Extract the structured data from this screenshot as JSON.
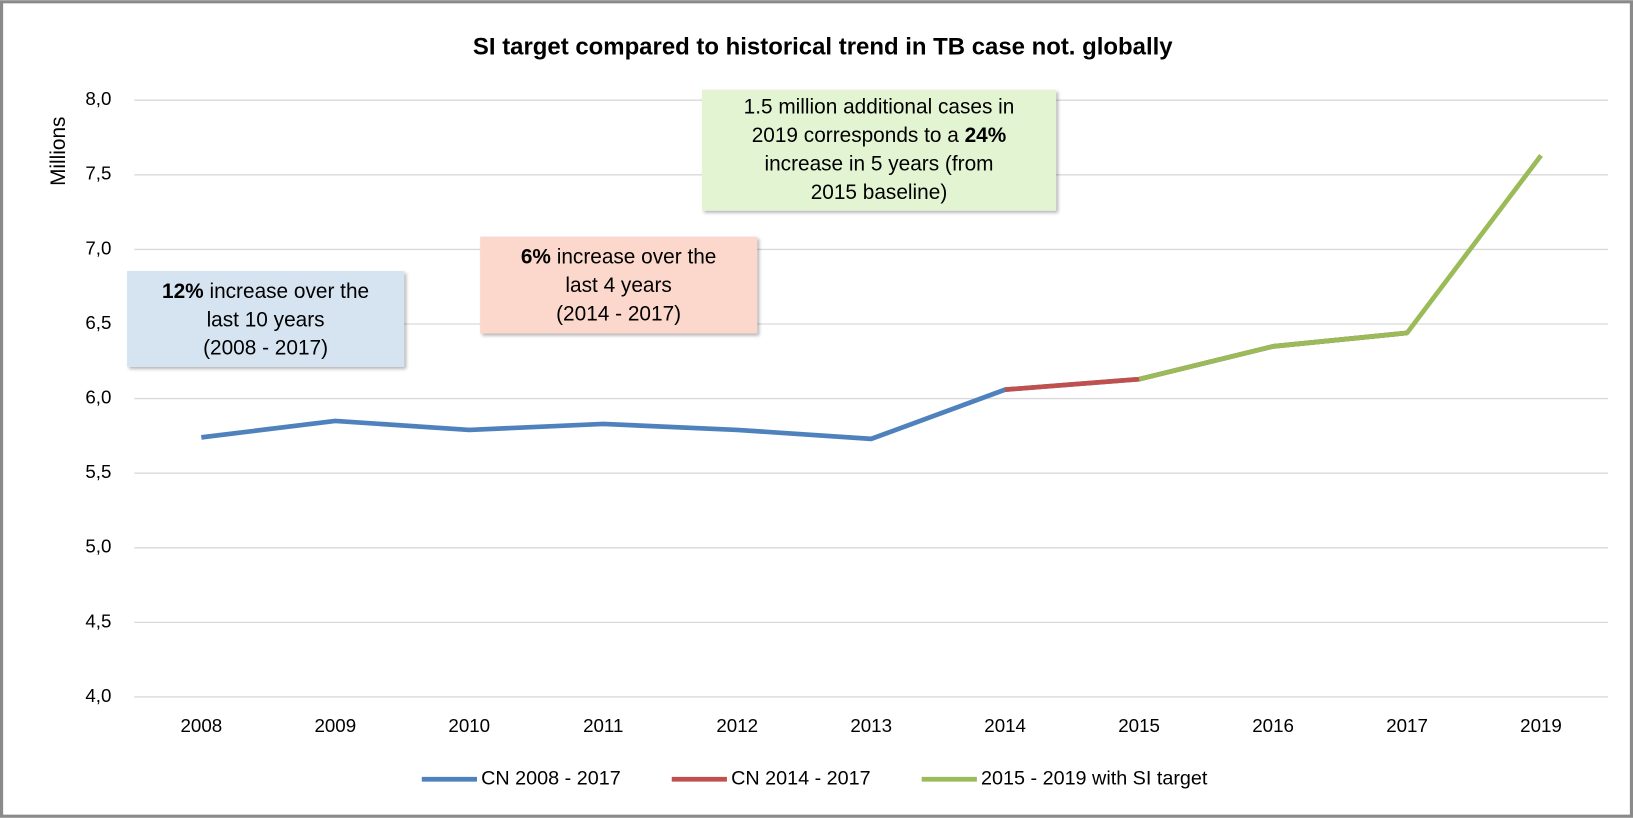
{
  "chart_data": {
    "type": "line",
    "title": "SI target compared to historical trend in TB case not. globally",
    "y_axis_label": "Millions",
    "categories": [
      "2008",
      "2009",
      "2010",
      "2011",
      "2012",
      "2013",
      "2014",
      "2015",
      "2016",
      "2017",
      "2019"
    ],
    "series": [
      {
        "name": "CN 2008 - 2017",
        "color": "#4f81bd",
        "values": [
          5.74,
          5.85,
          5.79,
          5.83,
          5.79,
          5.73,
          6.06,
          6.13,
          6.35,
          6.44,
          null
        ]
      },
      {
        "name": "CN 2014 - 2017",
        "color": "#c0504d",
        "values": [
          null,
          null,
          null,
          null,
          null,
          null,
          6.06,
          6.13,
          6.35,
          6.44,
          null
        ]
      },
      {
        "name": "2015 - 2019 with SI target",
        "color": "#9bbb59",
        "values": [
          null,
          null,
          null,
          null,
          null,
          null,
          null,
          6.13,
          6.35,
          6.44,
          7.63
        ]
      }
    ],
    "ylim": [
      4.0,
      8.0
    ],
    "yticks": [
      {
        "value": 4.0,
        "label": "4,0"
      },
      {
        "value": 4.5,
        "label": "4,5"
      },
      {
        "value": 5.0,
        "label": "5,0"
      },
      {
        "value": 5.5,
        "label": "5,5"
      },
      {
        "value": 6.0,
        "label": "6,0"
      },
      {
        "value": 6.5,
        "label": "6,5"
      },
      {
        "value": 7.0,
        "label": "7,0"
      },
      {
        "value": 7.5,
        "label": "7,5"
      },
      {
        "value": 8.0,
        "label": "8,0"
      }
    ],
    "grid": true,
    "legend": "bottom",
    "annotations": [
      {
        "color": "#d6e4f2",
        "lines": [
          [
            {
              "text": "12%",
              "bold": true
            },
            {
              "text": " increase over the"
            }
          ],
          [
            {
              "text": "last 10 years"
            }
          ],
          [
            {
              "text": "(2008 - 2017)"
            }
          ]
        ]
      },
      {
        "color": "#fbd8cb",
        "lines": [
          [
            {
              "text": "6%",
              "bold": true
            },
            {
              "text": " increase over the"
            }
          ],
          [
            {
              "text": "last 4 years"
            }
          ],
          [
            {
              "text": "(2014 - 2017)"
            }
          ]
        ]
      },
      {
        "color": "#e3f4d3",
        "lines": [
          [
            {
              "text": "1.5 million additional cases in"
            }
          ],
          [
            {
              "text": "2019 corresponds to a "
            },
            {
              "text": "24%",
              "bold": true
            }
          ],
          [
            {
              "text": "increase in 5 years (from"
            }
          ],
          [
            {
              "text": "2015 baseline)"
            }
          ]
        ]
      }
    ]
  }
}
